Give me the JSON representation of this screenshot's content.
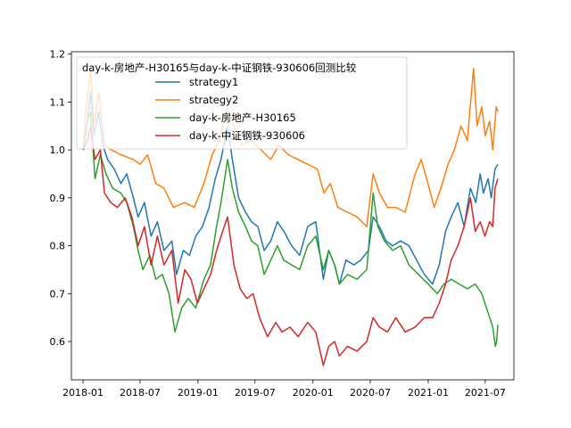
{
  "chart_data": {
    "type": "line",
    "title": "",
    "xlabel": "",
    "ylabel": "",
    "xlim": [
      "2017-11-25",
      "2021-09-30"
    ],
    "ylim": [
      0.52,
      1.205
    ],
    "x_ticks": [
      "2018-01",
      "2018-07",
      "2019-01",
      "2019-07",
      "2020-01",
      "2020-07",
      "2021-01",
      "2021-07"
    ],
    "x_tick_dates": [
      "2018-01-01",
      "2018-07-01",
      "2019-01-01",
      "2019-07-01",
      "2020-01-01",
      "2020-07-01",
      "2021-01-01",
      "2021-07-01"
    ],
    "y_ticks": [
      "0.6",
      "0.7",
      "0.8",
      "0.9",
      "1.0",
      "1.1",
      "1.2"
    ],
    "y_tick_values": [
      0.6,
      0.7,
      0.8,
      0.9,
      1.0,
      1.1,
      1.2
    ],
    "grid": false,
    "legend_placement": "top-left",
    "legend_title": "day-k-房地产-H30165与day-k-中证钢铁-930606回测比较",
    "series": [
      {
        "name": "strategy1",
        "color": "#1f77b4",
        "points": [
          [
            "2018-01-02",
            1.0
          ],
          [
            "2018-01-15",
            1.06
          ],
          [
            "2018-01-25",
            1.12
          ],
          [
            "2018-02-05",
            1.03
          ],
          [
            "2018-02-20",
            1.08
          ],
          [
            "2018-03-05",
            1.01
          ],
          [
            "2018-03-20",
            0.98
          ],
          [
            "2018-04-10",
            0.96
          ],
          [
            "2018-05-01",
            0.93
          ],
          [
            "2018-05-20",
            0.95
          ],
          [
            "2018-06-10",
            0.9
          ],
          [
            "2018-06-25",
            0.86
          ],
          [
            "2018-07-15",
            0.89
          ],
          [
            "2018-08-05",
            0.82
          ],
          [
            "2018-08-25",
            0.85
          ],
          [
            "2018-09-15",
            0.79
          ],
          [
            "2018-10-10",
            0.81
          ],
          [
            "2018-10-25",
            0.74
          ],
          [
            "2018-11-15",
            0.79
          ],
          [
            "2018-12-05",
            0.78
          ],
          [
            "2018-12-25",
            0.82
          ],
          [
            "2019-01-15",
            0.84
          ],
          [
            "2019-02-05",
            0.88
          ],
          [
            "2019-02-25",
            0.94
          ],
          [
            "2019-03-15",
            0.98
          ],
          [
            "2019-04-05",
            1.05
          ],
          [
            "2019-04-20",
            0.98
          ],
          [
            "2019-05-10",
            0.9
          ],
          [
            "2019-06-01",
            0.87
          ],
          [
            "2019-06-20",
            0.85
          ],
          [
            "2019-07-10",
            0.84
          ],
          [
            "2019-07-30",
            0.79
          ],
          [
            "2019-08-20",
            0.81
          ],
          [
            "2019-09-10",
            0.85
          ],
          [
            "2019-10-01",
            0.83
          ],
          [
            "2019-10-25",
            0.8
          ],
          [
            "2019-11-20",
            0.78
          ],
          [
            "2019-12-15",
            0.84
          ],
          [
            "2020-01-10",
            0.85
          ],
          [
            "2020-02-03",
            0.73
          ],
          [
            "2020-02-20",
            0.79
          ],
          [
            "2020-03-10",
            0.76
          ],
          [
            "2020-03-25",
            0.72
          ],
          [
            "2020-04-15",
            0.77
          ],
          [
            "2020-05-10",
            0.76
          ],
          [
            "2020-06-01",
            0.77
          ],
          [
            "2020-06-25",
            0.79
          ],
          [
            "2020-07-10",
            0.86
          ],
          [
            "2020-07-30",
            0.84
          ],
          [
            "2020-08-20",
            0.81
          ],
          [
            "2020-09-10",
            0.8
          ],
          [
            "2020-10-05",
            0.81
          ],
          [
            "2020-11-01",
            0.8
          ],
          [
            "2020-11-25",
            0.77
          ],
          [
            "2020-12-20",
            0.74
          ],
          [
            "2021-01-15",
            0.72
          ],
          [
            "2021-02-05",
            0.76
          ],
          [
            "2021-02-25",
            0.83
          ],
          [
            "2021-03-15",
            0.86
          ],
          [
            "2021-04-05",
            0.89
          ],
          [
            "2021-04-25",
            0.84
          ],
          [
            "2021-05-15",
            0.92
          ],
          [
            "2021-06-01",
            0.89
          ],
          [
            "2021-06-15",
            0.95
          ],
          [
            "2021-06-25",
            0.91
          ],
          [
            "2021-07-10",
            0.94
          ],
          [
            "2021-07-20",
            0.9
          ],
          [
            "2021-08-01",
            0.96
          ],
          [
            "2021-08-10",
            0.97
          ]
        ]
      },
      {
        "name": "strategy2",
        "color": "#ff7f0e",
        "points": [
          [
            "2018-01-02",
            1.0
          ],
          [
            "2018-01-10",
            1.08
          ],
          [
            "2018-01-25",
            1.17
          ],
          [
            "2018-02-05",
            1.05
          ],
          [
            "2018-02-20",
            1.12
          ],
          [
            "2018-03-10",
            1.01
          ],
          [
            "2018-04-01",
            1.0
          ],
          [
            "2018-05-01",
            0.99
          ],
          [
            "2018-06-10",
            0.98
          ],
          [
            "2018-07-01",
            0.97
          ],
          [
            "2018-07-25",
            0.99
          ],
          [
            "2018-08-20",
            0.93
          ],
          [
            "2018-09-15",
            0.92
          ],
          [
            "2018-10-15",
            0.88
          ],
          [
            "2018-11-20",
            0.89
          ],
          [
            "2018-12-20",
            0.88
          ],
          [
            "2019-01-20",
            0.93
          ],
          [
            "2019-02-15",
            0.99
          ],
          [
            "2019-03-10",
            1.02
          ],
          [
            "2019-04-05",
            1.09
          ],
          [
            "2019-04-25",
            1.05
          ],
          [
            "2019-05-20",
            1.01
          ],
          [
            "2019-06-20",
            1.02
          ],
          [
            "2019-07-20",
            1.0
          ],
          [
            "2019-08-20",
            0.98
          ],
          [
            "2019-09-15",
            1.01
          ],
          [
            "2019-10-15",
            0.99
          ],
          [
            "2019-11-15",
            0.98
          ],
          [
            "2019-12-15",
            0.97
          ],
          [
            "2020-01-15",
            0.96
          ],
          [
            "2020-02-05",
            0.91
          ],
          [
            "2020-02-25",
            0.93
          ],
          [
            "2020-03-20",
            0.88
          ],
          [
            "2020-04-20",
            0.87
          ],
          [
            "2020-05-20",
            0.86
          ],
          [
            "2020-06-20",
            0.84
          ],
          [
            "2020-07-10",
            0.95
          ],
          [
            "2020-07-30",
            0.91
          ],
          [
            "2020-08-25",
            0.88
          ],
          [
            "2020-09-20",
            0.88
          ],
          [
            "2020-10-20",
            0.87
          ],
          [
            "2020-11-20",
            0.95
          ],
          [
            "2020-12-10",
            0.98
          ],
          [
            "2020-12-31",
            0.93
          ],
          [
            "2021-01-20",
            0.88
          ],
          [
            "2021-02-10",
            0.92
          ],
          [
            "2021-03-05",
            0.97
          ],
          [
            "2021-03-25",
            1.0
          ],
          [
            "2021-04-15",
            1.05
          ],
          [
            "2021-05-05",
            1.02
          ],
          [
            "2021-05-25",
            1.17
          ],
          [
            "2021-06-05",
            1.05
          ],
          [
            "2021-06-20",
            1.09
          ],
          [
            "2021-07-01",
            1.03
          ],
          [
            "2021-07-15",
            1.06
          ],
          [
            "2021-07-25",
            1.0
          ],
          [
            "2021-08-05",
            1.09
          ],
          [
            "2021-08-10",
            1.08
          ]
        ]
      },
      {
        "name": "day-k-房地产-H30165",
        "color": "#2ca02c",
        "points": [
          [
            "2018-01-02",
            1.0
          ],
          [
            "2018-01-15",
            1.06
          ],
          [
            "2018-01-25",
            1.08
          ],
          [
            "2018-02-08",
            0.94
          ],
          [
            "2018-02-25",
            0.99
          ],
          [
            "2018-03-15",
            0.95
          ],
          [
            "2018-04-05",
            0.92
          ],
          [
            "2018-05-01",
            0.91
          ],
          [
            "2018-05-20",
            0.89
          ],
          [
            "2018-06-10",
            0.84
          ],
          [
            "2018-06-25",
            0.79
          ],
          [
            "2018-07-10",
            0.75
          ],
          [
            "2018-08-01",
            0.78
          ],
          [
            "2018-08-20",
            0.73
          ],
          [
            "2018-09-10",
            0.74
          ],
          [
            "2018-10-01",
            0.7
          ],
          [
            "2018-10-20",
            0.62
          ],
          [
            "2018-11-10",
            0.67
          ],
          [
            "2018-12-01",
            0.69
          ],
          [
            "2018-12-25",
            0.67
          ],
          [
            "2019-01-20",
            0.73
          ],
          [
            "2019-02-10",
            0.76
          ],
          [
            "2019-03-01",
            0.84
          ],
          [
            "2019-03-15",
            0.89
          ],
          [
            "2019-04-05",
            0.98
          ],
          [
            "2019-04-20",
            0.92
          ],
          [
            "2019-05-10",
            0.87
          ],
          [
            "2019-06-01",
            0.84
          ],
          [
            "2019-06-20",
            0.81
          ],
          [
            "2019-07-10",
            0.8
          ],
          [
            "2019-07-30",
            0.74
          ],
          [
            "2019-08-20",
            0.77
          ],
          [
            "2019-09-10",
            0.8
          ],
          [
            "2019-09-30",
            0.77
          ],
          [
            "2019-10-25",
            0.76
          ],
          [
            "2019-11-20",
            0.75
          ],
          [
            "2019-12-15",
            0.8
          ],
          [
            "2020-01-10",
            0.82
          ],
          [
            "2020-02-03",
            0.75
          ],
          [
            "2020-02-20",
            0.79
          ],
          [
            "2020-03-10",
            0.76
          ],
          [
            "2020-03-25",
            0.72
          ],
          [
            "2020-04-20",
            0.74
          ],
          [
            "2020-05-20",
            0.73
          ],
          [
            "2020-06-20",
            0.75
          ],
          [
            "2020-07-10",
            0.91
          ],
          [
            "2020-07-25",
            0.84
          ],
          [
            "2020-08-15",
            0.81
          ],
          [
            "2020-09-10",
            0.79
          ],
          [
            "2020-10-05",
            0.8
          ],
          [
            "2020-11-01",
            0.76
          ],
          [
            "2020-12-01",
            0.74
          ],
          [
            "2021-01-01",
            0.72
          ],
          [
            "2021-01-30",
            0.7
          ],
          [
            "2021-02-20",
            0.72
          ],
          [
            "2021-03-15",
            0.73
          ],
          [
            "2021-04-10",
            0.72
          ],
          [
            "2021-05-05",
            0.71
          ],
          [
            "2021-05-30",
            0.72
          ],
          [
            "2021-06-20",
            0.7
          ],
          [
            "2021-07-10",
            0.66
          ],
          [
            "2021-07-25",
            0.63
          ],
          [
            "2021-08-02",
            0.59
          ],
          [
            "2021-08-06",
            0.6
          ],
          [
            "2021-08-10",
            0.635
          ]
        ]
      },
      {
        "name": "day-k-中证钢铁-930606",
        "color": "#d62728",
        "points": [
          [
            "2018-01-02",
            1.0
          ],
          [
            "2018-01-15",
            1.02
          ],
          [
            "2018-01-25",
            1.05
          ],
          [
            "2018-02-08",
            0.98
          ],
          [
            "2018-02-25",
            1.0
          ],
          [
            "2018-03-10",
            0.91
          ],
          [
            "2018-03-30",
            0.89
          ],
          [
            "2018-04-20",
            0.88
          ],
          [
            "2018-05-15",
            0.9
          ],
          [
            "2018-06-05",
            0.86
          ],
          [
            "2018-06-25",
            0.8
          ],
          [
            "2018-07-15",
            0.84
          ],
          [
            "2018-08-05",
            0.76
          ],
          [
            "2018-08-25",
            0.82
          ],
          [
            "2018-09-15",
            0.76
          ],
          [
            "2018-10-10",
            0.79
          ],
          [
            "2018-10-30",
            0.68
          ],
          [
            "2018-11-20",
            0.75
          ],
          [
            "2018-12-10",
            0.73
          ],
          [
            "2018-12-30",
            0.68
          ],
          [
            "2019-01-20",
            0.71
          ],
          [
            "2019-02-10",
            0.74
          ],
          [
            "2019-03-01",
            0.79
          ],
          [
            "2019-03-20",
            0.83
          ],
          [
            "2019-04-05",
            0.86
          ],
          [
            "2019-04-25",
            0.76
          ],
          [
            "2019-05-15",
            0.71
          ],
          [
            "2019-06-05",
            0.69
          ],
          [
            "2019-06-25",
            0.7
          ],
          [
            "2019-07-15",
            0.65
          ],
          [
            "2019-08-10",
            0.61
          ],
          [
            "2019-09-05",
            0.64
          ],
          [
            "2019-09-25",
            0.62
          ],
          [
            "2019-10-20",
            0.63
          ],
          [
            "2019-11-15",
            0.61
          ],
          [
            "2019-12-15",
            0.64
          ],
          [
            "2020-01-10",
            0.62
          ],
          [
            "2020-02-03",
            0.55
          ],
          [
            "2020-02-20",
            0.59
          ],
          [
            "2020-03-10",
            0.6
          ],
          [
            "2020-03-25",
            0.57
          ],
          [
            "2020-04-20",
            0.59
          ],
          [
            "2020-05-20",
            0.58
          ],
          [
            "2020-06-20",
            0.6
          ],
          [
            "2020-07-10",
            0.65
          ],
          [
            "2020-07-30",
            0.63
          ],
          [
            "2020-08-25",
            0.62
          ],
          [
            "2020-09-20",
            0.65
          ],
          [
            "2020-10-20",
            0.62
          ],
          [
            "2020-11-20",
            0.63
          ],
          [
            "2020-12-20",
            0.65
          ],
          [
            "2021-01-15",
            0.65
          ],
          [
            "2021-02-05",
            0.68
          ],
          [
            "2021-02-25",
            0.72
          ],
          [
            "2021-03-15",
            0.77
          ],
          [
            "2021-04-05",
            0.8
          ],
          [
            "2021-04-25",
            0.84
          ],
          [
            "2021-05-15",
            0.9
          ],
          [
            "2021-05-30",
            0.83
          ],
          [
            "2021-06-15",
            0.85
          ],
          [
            "2021-06-30",
            0.82
          ],
          [
            "2021-07-15",
            0.85
          ],
          [
            "2021-07-25",
            0.84
          ],
          [
            "2021-08-01",
            0.92
          ],
          [
            "2021-08-10",
            0.94
          ]
        ]
      }
    ]
  }
}
